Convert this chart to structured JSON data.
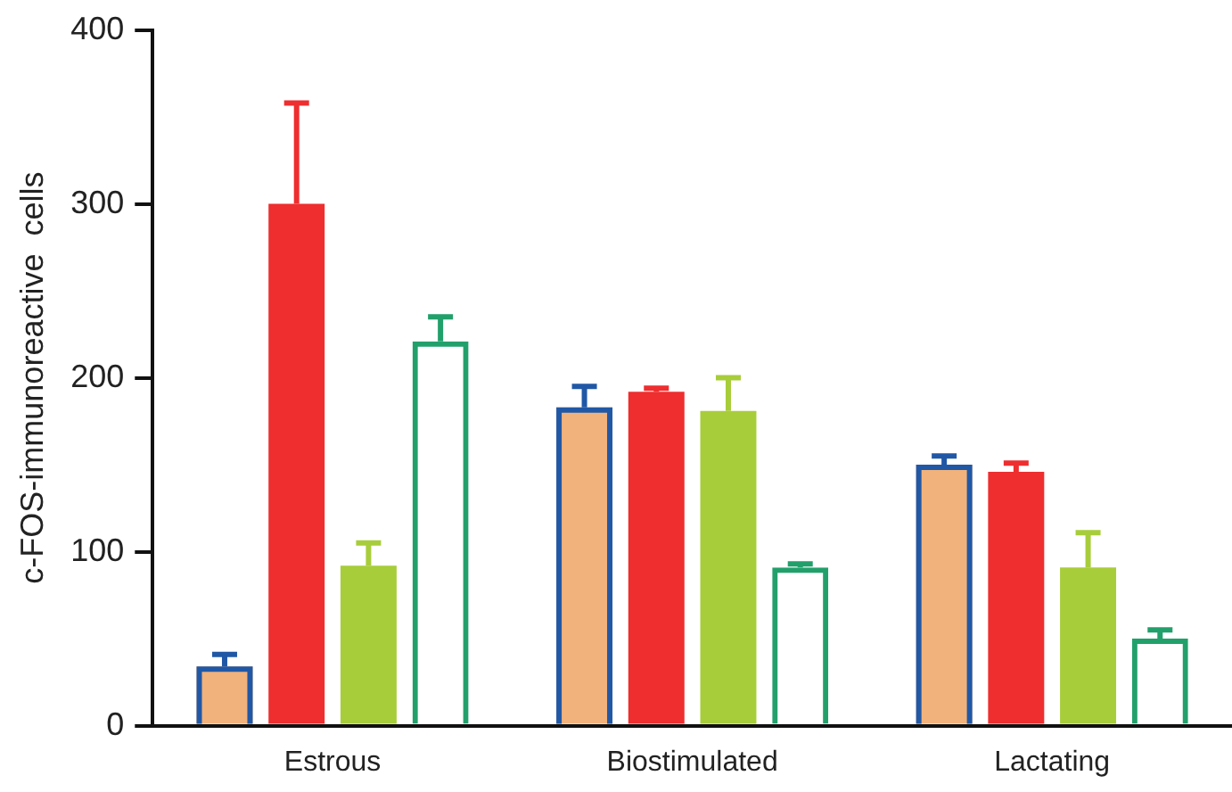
{
  "chart_data": {
    "type": "bar",
    "ylabel": "c-FOS-immunoreactive  cells",
    "categories": [
      "Estrous",
      "Biostimulated",
      "Lactating"
    ],
    "series": [
      {
        "color": "#f2b27b",
        "values": [
          34,
          183,
          150
        ],
        "errors": [
          [
            34,
            41
          ],
          [
            183,
            195
          ],
          [
            150,
            155
          ]
        ]
      },
      {
        "color": "#ee2e2f",
        "values": [
          300,
          192,
          146
        ],
        "errors": [
          [
            300,
            358
          ],
          [
            192,
            194
          ],
          [
            146,
            151
          ]
        ]
      },
      {
        "color": "#a8cd3a",
        "values": [
          92,
          181,
          91
        ],
        "errors": [
          [
            92,
            105
          ],
          [
            181,
            200
          ],
          [
            91,
            111
          ]
        ]
      },
      {
        "color": "#22a06b",
        "values": [
          221,
          91,
          50
        ],
        "errors": [
          [
            221,
            235
          ],
          [
            91,
            93
          ],
          [
            50,
            55
          ]
        ]
      }
    ],
    "ylim": [
      0,
      400
    ],
    "yticks": [
      0,
      100,
      200,
      300,
      400
    ],
    "grid": false,
    "legend": false
  }
}
